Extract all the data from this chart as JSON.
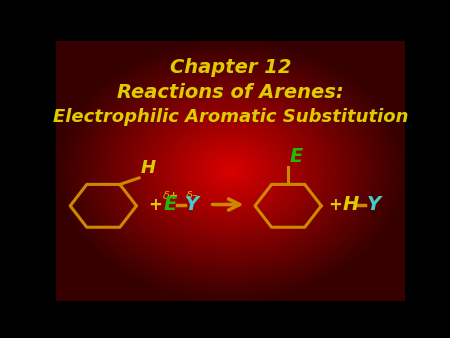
{
  "title_line1": "Chapter 12",
  "title_line2": "Reactions of Arenes:",
  "title_line3": "Electrophilic Aromatic Substitution",
  "title_color": "#DDCC00",
  "benzene_color": "#CC8800",
  "E_color": "#22BB00",
  "Y_color": "#44CCCC",
  "H_color": "#DDCC00",
  "delta_color": "#DDAA00",
  "plus_color": "#DDCC00",
  "arrow_color": "#CC8800",
  "bond_color": "#CC8800",
  "title_fs": 14,
  "sub_fs": 13,
  "delta_fs": 8
}
